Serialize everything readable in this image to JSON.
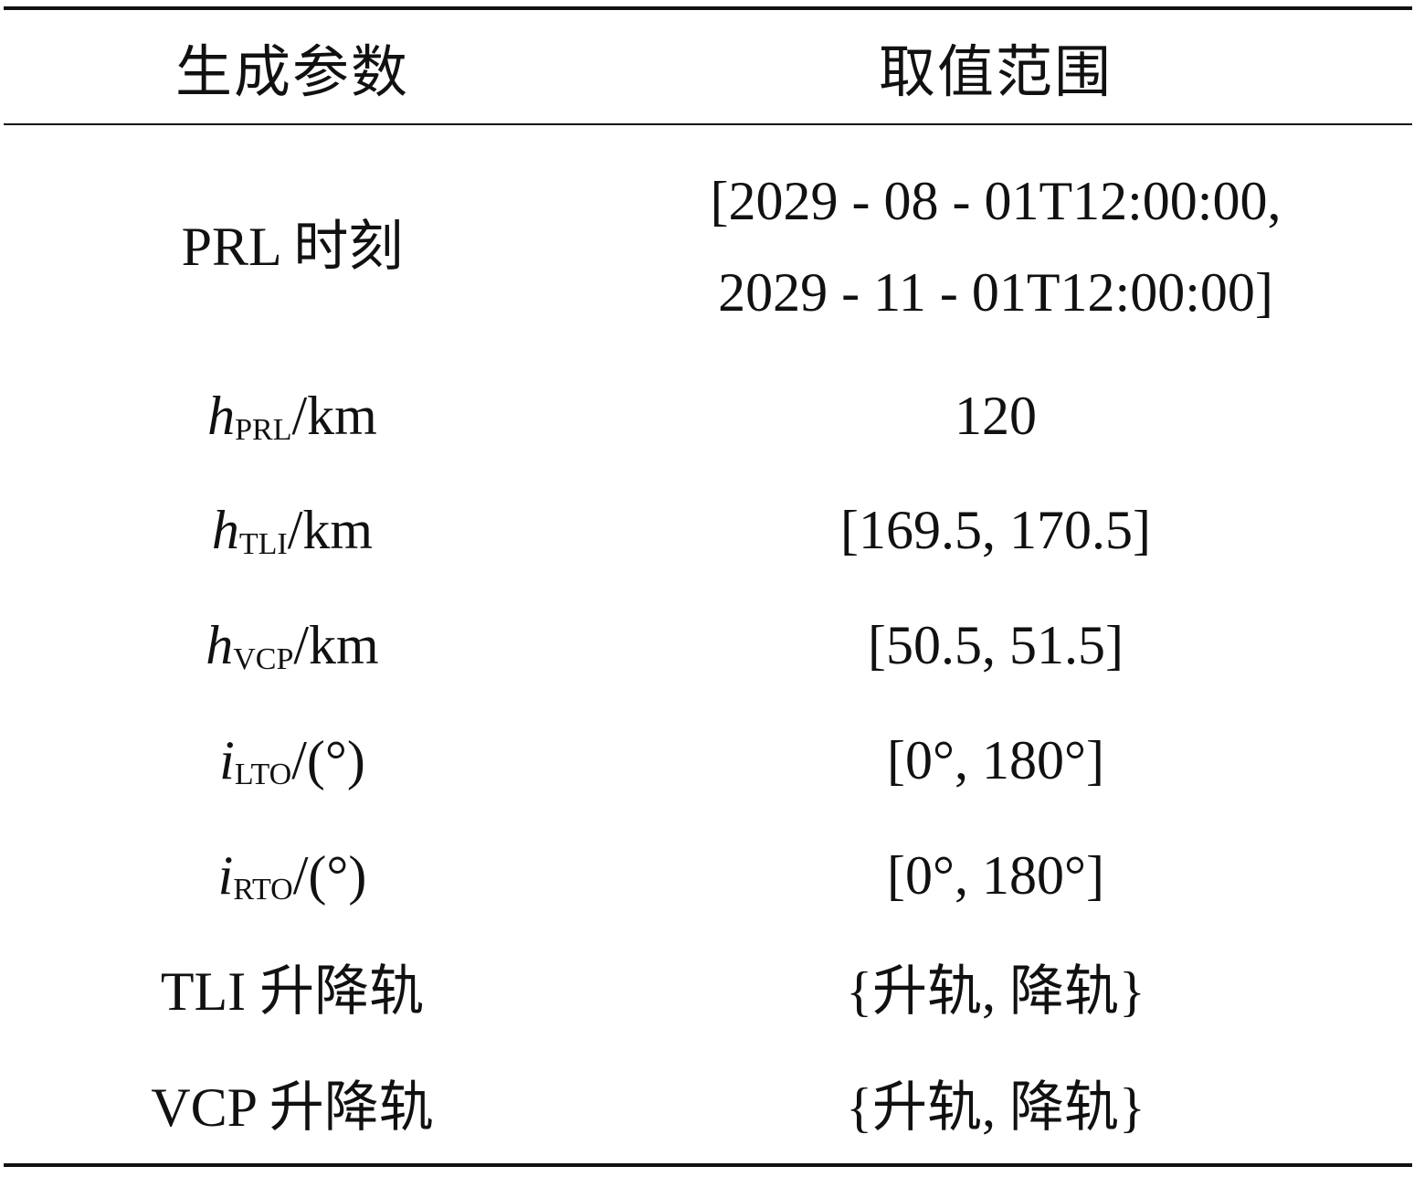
{
  "table": {
    "header": {
      "param": "生成参数",
      "range": "取值范围"
    },
    "rows": [
      {
        "param_text": "PRL 时刻",
        "range_line1": "[2029 - 08 - 01T12:00:00,",
        "range_line2": "2029 - 11 - 01T12:00:00]"
      },
      {
        "param_sym": "h",
        "param_sub": "PRL",
        "param_unit": "/km",
        "range": "120"
      },
      {
        "param_sym": "h",
        "param_sub": "TLI",
        "param_unit": "/km",
        "range": "[169.5, 170.5]"
      },
      {
        "param_sym": "h",
        "param_sub": "VCP",
        "param_unit": "/km",
        "range": "[50.5, 51.5]"
      },
      {
        "param_sym": "i",
        "param_sub": "LTO",
        "param_unit": "/(°)",
        "range": "[0°, 180°]"
      },
      {
        "param_sym": "i",
        "param_sub": "RTO",
        "param_unit": "/(°)",
        "range": "[0°, 180°]"
      },
      {
        "param_text": "TLI 升降轨",
        "range": "{升轨, 降轨}"
      },
      {
        "param_text": "VCP 升降轨",
        "range": "{升轨, 降轨}"
      }
    ]
  }
}
